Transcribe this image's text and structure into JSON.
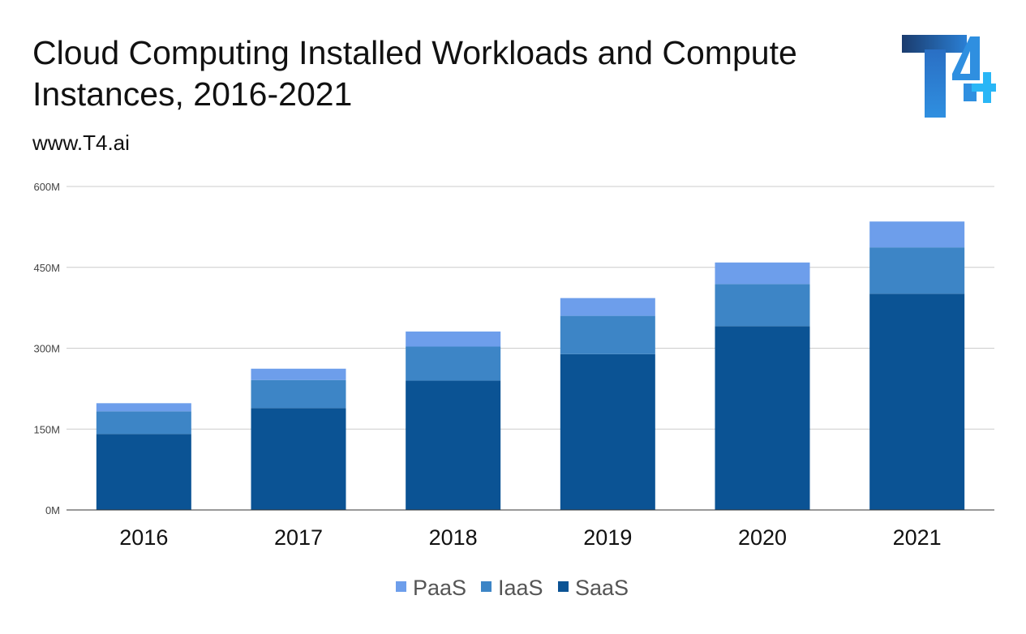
{
  "title": "Cloud Computing Installed Workloads and Compute Instances, 2016-2021",
  "subtitle": "www.T4.ai",
  "logo_icon": "t4-logo-icon",
  "colors": {
    "PaaS": "#6d9eeb",
    "IaaS": "#3d85c6",
    "SaaS": "#0b5394"
  },
  "chart_data": {
    "type": "bar",
    "stacked": true,
    "title": "Cloud Computing Installed Workloads and Compute Instances, 2016-2021",
    "xlabel": "",
    "ylabel": "",
    "categories": [
      "2016",
      "2017",
      "2018",
      "2019",
      "2020",
      "2021"
    ],
    "series": [
      {
        "name": "SaaS",
        "values": [
          141,
          189,
          240,
          289,
          341,
          401
        ]
      },
      {
        "name": "IaaS",
        "values": [
          42,
          52,
          63,
          71,
          78,
          86
        ]
      },
      {
        "name": "PaaS",
        "values": [
          15,
          21,
          28,
          33,
          40,
          48
        ]
      }
    ],
    "ylim": [
      0,
      600
    ],
    "yticks": [
      0,
      150,
      300,
      450,
      600
    ],
    "ytick_labels": [
      "0M",
      "150M",
      "300M",
      "450M",
      "600M"
    ],
    "grid": true,
    "legend": {
      "position": "bottom",
      "order": [
        "PaaS",
        "IaaS",
        "SaaS"
      ]
    }
  }
}
